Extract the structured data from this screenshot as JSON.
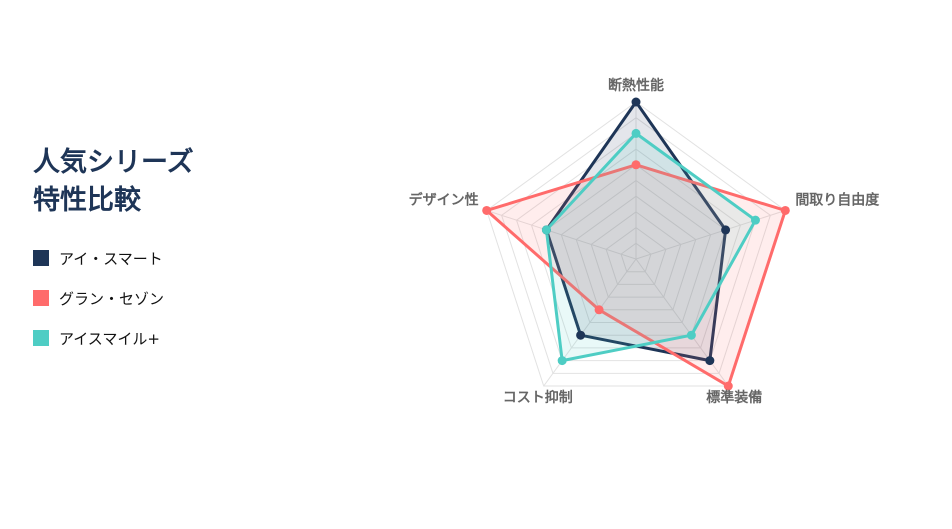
{
  "title_line1": "人気シリーズ",
  "title_line2": "特性比較",
  "chart_data": {
    "type": "radar",
    "axes": [
      "断熱性能",
      "間取り自由度",
      "標準装備",
      "コスト抑制",
      "デザイン性"
    ],
    "range": [
      0,
      10
    ],
    "grid_levels": 10,
    "legend_position": "left",
    "series": [
      {
        "name": "アイ・スマート",
        "color": "#1e3557",
        "values": [
          10,
          6,
          8,
          6,
          6
        ]
      },
      {
        "name": "グラン・セゾン",
        "color": "#ff6b6b",
        "values": [
          6,
          10,
          10,
          4,
          10
        ]
      },
      {
        "name": "アイスマイル+",
        "color": "#4ecdc4",
        "values": [
          8,
          8,
          6,
          8,
          6
        ]
      }
    ]
  }
}
